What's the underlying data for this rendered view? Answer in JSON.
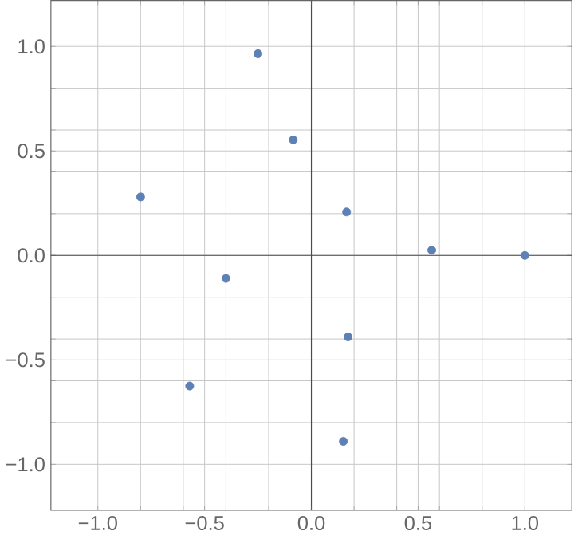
{
  "chart_data": {
    "type": "scatter",
    "color": "#5e81b5",
    "grid": true,
    "x": [
      -0.8,
      -0.25,
      -0.085,
      0.165,
      0.564,
      1.0,
      -0.4,
      0.172,
      -0.57,
      0.15
    ],
    "values": [
      0.28,
      0.965,
      0.553,
      0.208,
      0.025,
      0.0,
      -0.11,
      -0.39,
      -0.625,
      -0.89
    ],
    "xlim": [
      -1.22,
      1.22
    ],
    "ylim": [
      -1.22,
      1.22
    ],
    "xticks": [
      {
        "value": -1,
        "label": "−1.0"
      },
      {
        "value": -0.8,
        "label": null
      },
      {
        "value": -0.6,
        "label": null
      },
      {
        "value": -0.5,
        "label": "−0.5"
      },
      {
        "value": -0.4,
        "label": null
      },
      {
        "value": -0.2,
        "label": null
      },
      {
        "value": 0,
        "label": "0.0"
      },
      {
        "value": 0.2,
        "label": null
      },
      {
        "value": 0.4,
        "label": null
      },
      {
        "value": 0.5,
        "label": "0.5"
      },
      {
        "value": 0.6,
        "label": null
      },
      {
        "value": 0.8,
        "label": null
      },
      {
        "value": 1,
        "label": "1.0"
      }
    ],
    "yticks": [
      {
        "value": -1,
        "label": "−1.0"
      },
      {
        "value": -0.8,
        "label": null
      },
      {
        "value": -0.6,
        "label": null
      },
      {
        "value": -0.5,
        "label": "−0.5"
      },
      {
        "value": -0.4,
        "label": null
      },
      {
        "value": -0.2,
        "label": null
      },
      {
        "value": 0,
        "label": "0.0"
      },
      {
        "value": 0.2,
        "label": null
      },
      {
        "value": 0.4,
        "label": null
      },
      {
        "value": 0.5,
        "label": "0.5"
      },
      {
        "value": 0.6,
        "label": null
      },
      {
        "value": 0.8,
        "label": null
      },
      {
        "value": 1,
        "label": "1.0"
      }
    ]
  }
}
